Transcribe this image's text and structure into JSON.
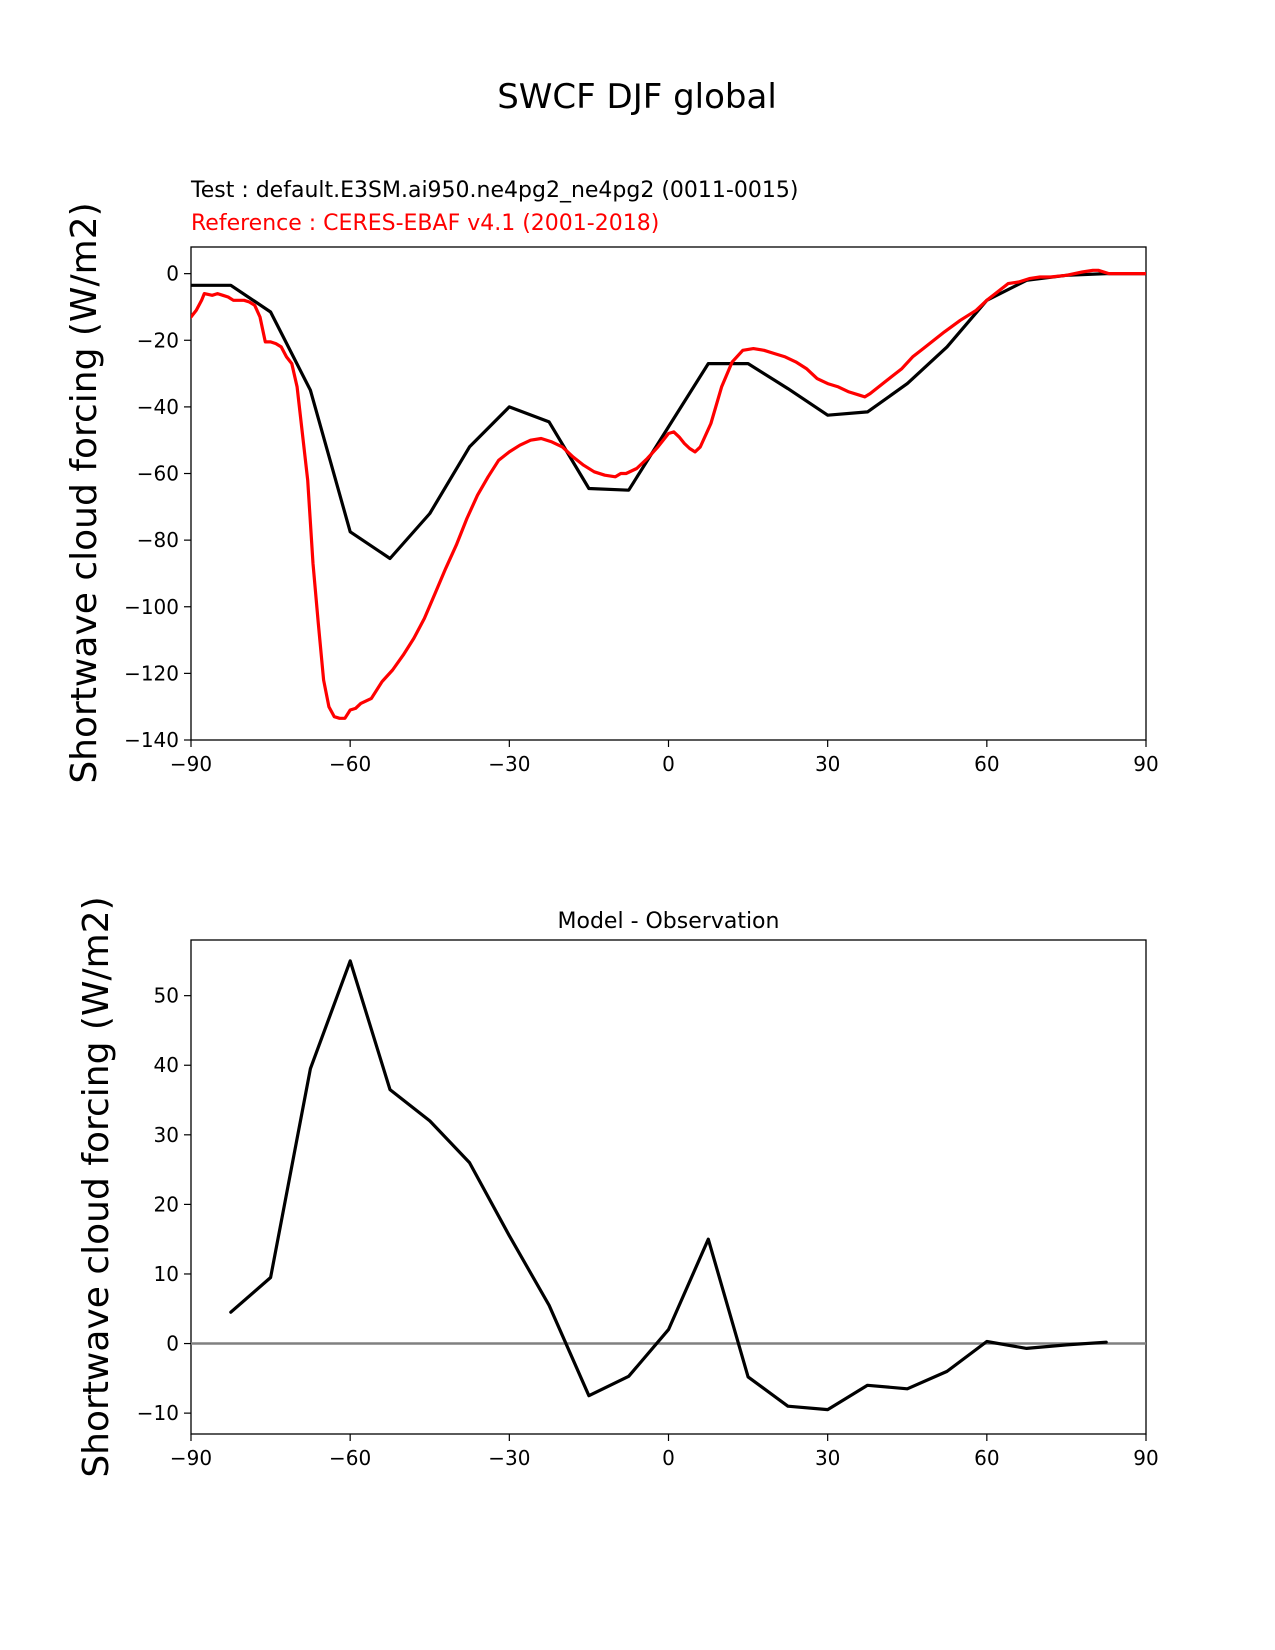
{
  "figure": {
    "suptitle": "SWCF DJF global",
    "test_line": "Test : default.E3SM.ai950.ne4pg2_ne4pg2 (0011-0015)",
    "reference_line": "Reference : CERES-EBAF v4.1 (2001-2018)",
    "colors": {
      "test": "#000000",
      "reference": "#ff0000",
      "zero_line": "#808080"
    }
  },
  "chart_data": [
    {
      "type": "line",
      "title": "",
      "xlabel": "",
      "ylabel": "Shortwave cloud forcing (W/m2)",
      "xlim": [
        -90,
        90
      ],
      "ylim": [
        -140,
        8
      ],
      "xticks": [
        -90,
        -60,
        -30,
        0,
        30,
        60,
        90
      ],
      "xtick_labels": [
        "−90",
        "−60",
        "−30",
        "0",
        "30",
        "60",
        "90"
      ],
      "yticks": [
        0,
        -20,
        -40,
        -60,
        -80,
        -100,
        -120,
        -140
      ],
      "ytick_labels": [
        "0",
        "−20",
        "−40",
        "−60",
        "−80",
        "−100",
        "−120",
        "−140"
      ],
      "series": [
        {
          "name": "Test",
          "color": "#000000",
          "x": [
            -90,
            -82.5,
            -75,
            -67.5,
            -60,
            -52.5,
            -45,
            -37.5,
            -30,
            -22.5,
            -15,
            -7.5,
            0,
            7.5,
            15,
            22.5,
            30,
            37.5,
            45,
            52.5,
            60,
            67.5,
            75,
            82.5,
            90
          ],
          "y": [
            -3.5,
            -3.5,
            -11.5,
            -35,
            -77.5,
            -85.5,
            -72,
            -52,
            -40,
            -44.5,
            -64.5,
            -65,
            -46,
            -27,
            -27,
            -34.5,
            -42.5,
            -41.5,
            -33,
            -22,
            -8,
            -2,
            -0.5,
            0,
            0
          ]
        },
        {
          "name": "Reference",
          "color": "#ff0000",
          "x": [
            -90,
            -89,
            -88,
            -87.5,
            -86,
            -85,
            -84,
            -83,
            -82,
            -81,
            -80,
            -79,
            -78,
            -77,
            -76,
            -75,
            -74,
            -73,
            -72,
            -71,
            -70,
            -68,
            -67,
            -66,
            -65,
            -64,
            -63,
            -62,
            -61,
            -60,
            -59,
            -58,
            -56,
            -54,
            -52,
            -50,
            -48,
            -46,
            -44,
            -42,
            -40,
            -38,
            -36,
            -34,
            -32,
            -30,
            -28,
            -26,
            -24,
            -22,
            -20,
            -18,
            -16,
            -14,
            -12,
            -10,
            -9,
            -8,
            -6,
            -4,
            -2,
            0,
            1,
            2,
            3,
            4,
            5,
            6,
            8,
            10,
            12,
            14,
            16,
            18,
            20,
            22,
            24,
            26,
            28,
            30,
            32,
            34,
            36,
            37,
            38,
            40,
            42,
            44,
            46,
            48,
            50,
            52,
            55,
            58,
            60,
            62,
            64,
            66,
            68,
            70,
            72,
            75,
            78,
            80,
            81,
            83,
            86,
            90
          ],
          "y": [
            -13,
            -11,
            -8,
            -6,
            -6.5,
            -6,
            -6.5,
            -7,
            -8,
            -8,
            -8,
            -8.5,
            -9.5,
            -13,
            -20.5,
            -20.5,
            -21,
            -22,
            -25,
            -27,
            -34,
            -62,
            -87,
            -105,
            -122,
            -130,
            -133,
            -133.5,
            -133.5,
            -131,
            -130.5,
            -129,
            -127.5,
            -122.5,
            -119,
            -114.5,
            -109.5,
            -103.5,
            -96,
            -88.5,
            -81.5,
            -73.5,
            -66.5,
            -61,
            -56,
            -53.5,
            -51.5,
            -50,
            -49.5,
            -50.5,
            -52,
            -55,
            -57.5,
            -59.5,
            -60.5,
            -61,
            -60,
            -60,
            -58.5,
            -55.5,
            -52,
            -48,
            -47.5,
            -49,
            -51,
            -52.5,
            -53.5,
            -52,
            -45,
            -34,
            -26.5,
            -23,
            -22.5,
            -23,
            -24,
            -25,
            -26.5,
            -28.5,
            -31.5,
            -33,
            -34,
            -35.5,
            -36.5,
            -37,
            -36,
            -33.5,
            -31,
            -28.5,
            -25,
            -22.5,
            -20,
            -17.5,
            -14,
            -11,
            -8,
            -5.5,
            -3,
            -2.5,
            -1.5,
            -1,
            -1,
            -0.5,
            0.5,
            1,
            1,
            0,
            0,
            0
          ]
        }
      ]
    },
    {
      "type": "line",
      "title": "Model - Observation",
      "xlabel": "",
      "ylabel": "Shortwave cloud forcing (W/m2)",
      "xlim": [
        -90,
        90
      ],
      "ylim": [
        -13,
        58
      ],
      "xticks": [
        -90,
        -60,
        -30,
        0,
        30,
        60,
        90
      ],
      "xtick_labels": [
        "−90",
        "−60",
        "−30",
        "0",
        "30",
        "60",
        "90"
      ],
      "yticks": [
        50,
        40,
        30,
        20,
        10,
        0,
        -10
      ],
      "ytick_labels": [
        "50",
        "40",
        "30",
        "20",
        "10",
        "0",
        "−10"
      ],
      "hline": 0,
      "series": [
        {
          "name": "Model - Observation",
          "color": "#000000",
          "x": [
            -82.5,
            -75,
            -67.5,
            -60,
            -52.5,
            -45,
            -37.5,
            -30,
            -22.5,
            -15,
            -7.5,
            0,
            7.5,
            15,
            22.5,
            30,
            37.5,
            45,
            52.5,
            60,
            67.5,
            75,
            82.5
          ],
          "y": [
            4.5,
            9.5,
            39.5,
            55,
            36.5,
            32,
            26,
            15.5,
            5.5,
            -7.5,
            -4.7,
            2,
            15,
            -4.8,
            -9,
            -9.5,
            -6,
            -6.5,
            -4,
            0.3,
            -0.7,
            -0.2,
            0.2
          ]
        }
      ]
    }
  ]
}
